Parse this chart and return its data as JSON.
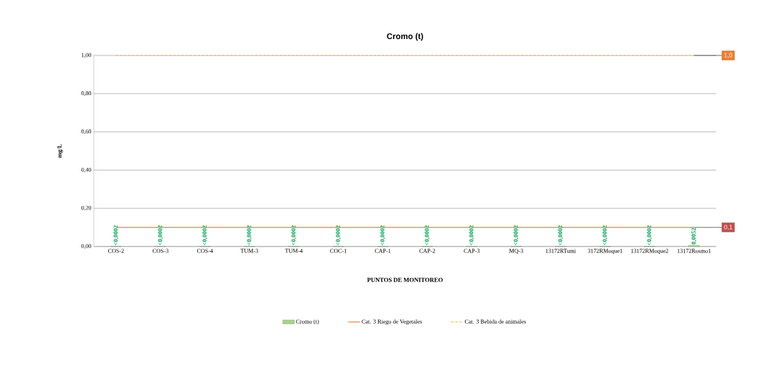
{
  "chart_data": {
    "type": "bar",
    "title": "Cromo (t)",
    "xlabel": "PUNTOS DE MONITOREO",
    "ylabel": "mg/L",
    "categories": [
      "COS-2",
      "COS-3",
      "COS-4",
      "TUM-3",
      "TUM-4",
      "COC-1",
      "CAP-1",
      "CAP-2",
      "CAP-3",
      "MQ-3",
      "13172RTumi",
      "3172RMoque1",
      "13172RMoque2",
      "13172Rosmo1"
    ],
    "series": [
      {
        "name": "Cromo (t)",
        "color": "#a9d18e",
        "values": [
          0.0002,
          0.0002,
          0.0002,
          0.0002,
          0.0002,
          0.0002,
          0.0002,
          0.0002,
          0.0002,
          0.0002,
          0.0002,
          0.0002,
          0.0002,
          0.0052
        ],
        "value_labels": [
          "<0,0002",
          "<0,0002",
          "<0,0002",
          "<0,0002",
          "<0,0002",
          "<0,0002",
          "<0,0002",
          "<0,0002",
          "<0,0002",
          "<0,0002",
          "<0,0002",
          "<0,0002",
          "<0,0002",
          "0,0052"
        ]
      },
      {
        "name": "Cat. 3 Riego de Vegetales",
        "type": "line",
        "color": "#ed7d31",
        "line_style": "solid",
        "values": [
          0.1,
          0.1,
          0.1,
          0.1,
          0.1,
          0.1,
          0.1,
          0.1,
          0.1,
          0.1,
          0.1,
          0.1,
          0.1,
          0.1
        ]
      },
      {
        "name": "Cat. 3 Bebida de animales",
        "type": "line",
        "color": "#ffc000",
        "line_style": "dashed",
        "values": [
          1,
          1,
          1,
          1,
          1,
          1,
          1,
          1,
          1,
          1,
          1,
          1,
          1,
          1
        ]
      }
    ],
    "ylim": [
      0,
      1
    ],
    "yticks": [
      {
        "value": 0,
        "label": "0,00"
      },
      {
        "value": 0.2,
        "label": "0,20"
      },
      {
        "value": 0.4,
        "label": "0,40"
      },
      {
        "value": 0.6,
        "label": "0,60"
      },
      {
        "value": 0.8,
        "label": "0,80"
      },
      {
        "value": 1,
        "label": "1,00"
      }
    ],
    "grid": "y",
    "legend": "bottom",
    "marker": "none",
    "annotations": [
      {
        "text": "1,0",
        "x": "13172Rosmo1",
        "y": 1
      },
      {
        "text": "0,1",
        "x": "13172Rosmo1",
        "y": 0.1
      }
    ]
  }
}
